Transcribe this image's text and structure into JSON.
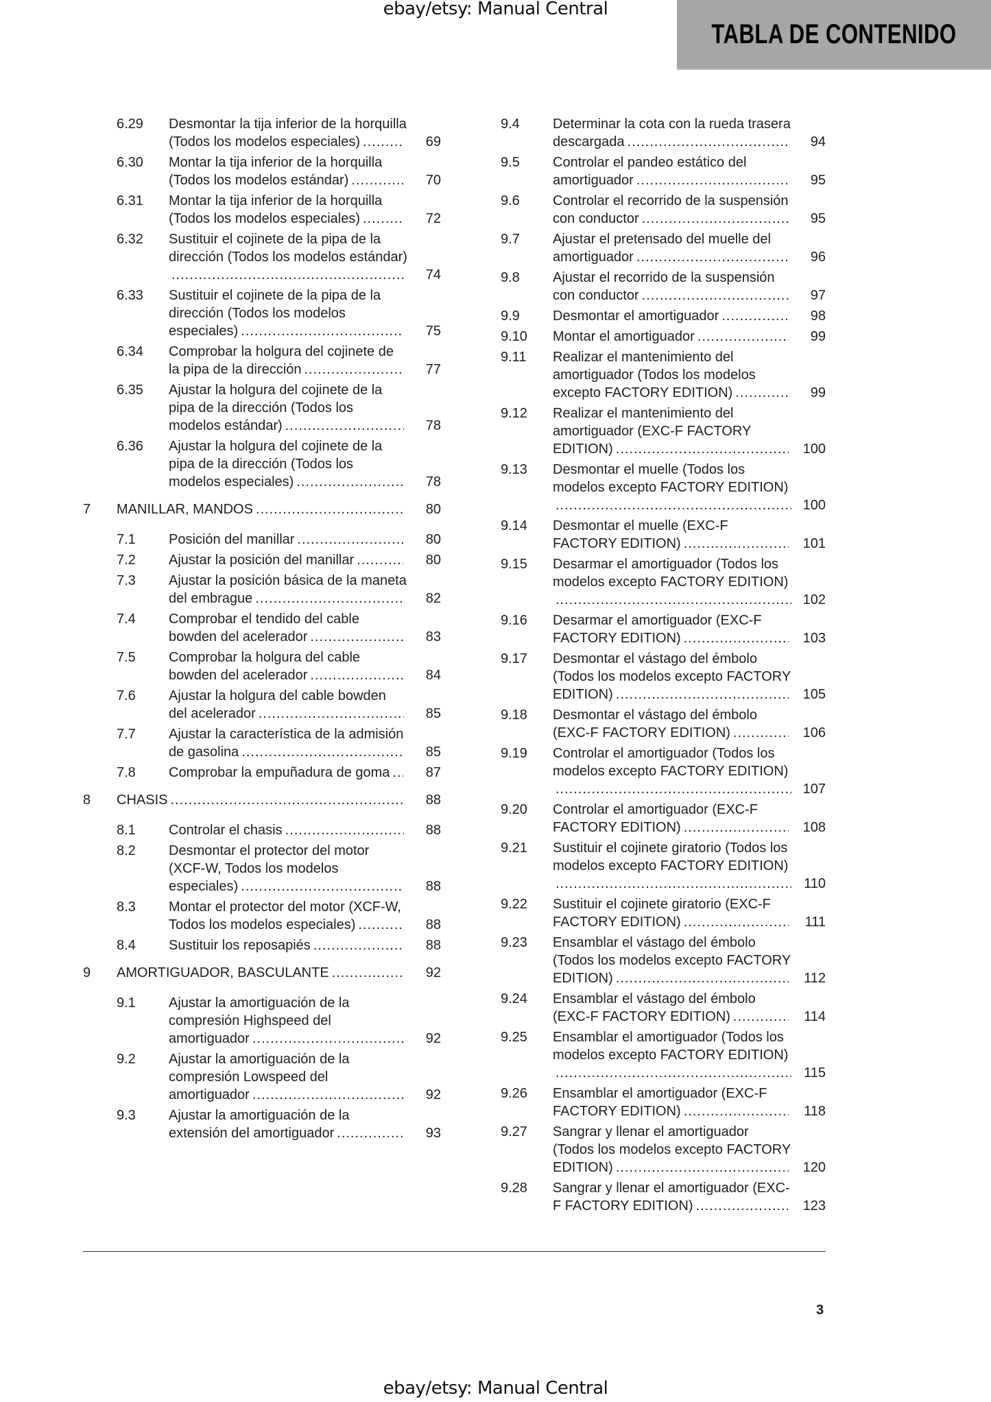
{
  "watermark": "ebay/etsy: Manual Central",
  "header": {
    "title": "TABLA DE CONTENIDO",
    "background": "#a6a6a6"
  },
  "page_number": "3",
  "columns": {
    "left": [
      {
        "num": "6.29",
        "title": "Desmontar la tija inferior de la horquilla (Todos los modelos especiales)",
        "page": "69"
      },
      {
        "num": "6.30",
        "title": "Montar la tija inferior de la horquilla (Todos los modelos estándar)",
        "page": "70"
      },
      {
        "num": "6.31",
        "title": "Montar la tija inferior de la horquilla (Todos los modelos especiales)",
        "page": "72"
      },
      {
        "num": "6.32",
        "title": "Sustituir el cojinete de la pipa de la dirección (Todos los modelos estándar)",
        "page": "74"
      },
      {
        "num": "6.33",
        "title": "Sustituir el cojinete de la pipa de la dirección (Todos los modelos especiales)",
        "page": "75"
      },
      {
        "num": "6.34",
        "title": "Comprobar la holgura del cojinete de la pipa de la dirección",
        "page": "77"
      },
      {
        "num": "6.35",
        "title": "Ajustar la holgura del cojinete de la pipa de la dirección (Todos los modelos estándar)",
        "page": "78"
      },
      {
        "num": "6.36",
        "title": "Ajustar la holgura del cojinete de la pipa de la dirección (Todos los modelos especiales)",
        "page": "78"
      },
      {
        "num": "7",
        "title": "MANILLAR, MANDOS",
        "page": "80",
        "chapter": true
      },
      {
        "num": "7.1",
        "title": "Posición del manillar",
        "page": "80"
      },
      {
        "num": "7.2",
        "title": "Ajustar la posición del manillar",
        "page": "80"
      },
      {
        "num": "7.3",
        "title": "Ajustar la posición básica de la maneta del embrague",
        "page": "82"
      },
      {
        "num": "7.4",
        "title": "Comprobar el tendido del cable bowden del acelerador",
        "page": "83"
      },
      {
        "num": "7.5",
        "title": "Comprobar la holgura del cable bowden del acelerador",
        "page": "84"
      },
      {
        "num": "7.6",
        "title": "Ajustar la holgura del cable bowden del acelerador",
        "page": "85"
      },
      {
        "num": "7.7",
        "title": "Ajustar la característica de la admisión de gasolina",
        "page": "85"
      },
      {
        "num": "7.8",
        "title": "Comprobar la empuñadura de goma",
        "page": "87"
      },
      {
        "num": "8",
        "title": "CHASIS",
        "page": "88",
        "chapter": true
      },
      {
        "num": "8.1",
        "title": "Controlar el chasis",
        "page": "88"
      },
      {
        "num": "8.2",
        "title": "Desmontar el protector del motor (XCF-W, Todos los modelos especiales)",
        "page": "88"
      },
      {
        "num": "8.3",
        "title": "Montar el protector del motor (XCF-W, Todos los modelos especiales)",
        "page": "88"
      },
      {
        "num": "8.4",
        "title": "Sustituir los reposapiés",
        "page": "88"
      },
      {
        "num": "9",
        "title": "AMORTIGUADOR, BASCULANTE",
        "page": "92",
        "chapter": true
      },
      {
        "num": "9.1",
        "title": "Ajustar la amortiguación de la compresión Highspeed del amortiguador",
        "page": "92"
      },
      {
        "num": "9.2",
        "title": "Ajustar la amortiguación de la compresión Lowspeed del amortiguador",
        "page": "92"
      },
      {
        "num": "9.3",
        "title": "Ajustar la amortiguación de la extensión del amortiguador",
        "page": "93"
      }
    ],
    "right": [
      {
        "num": "9.4",
        "title": "Determinar la cota con la rueda trasera descargada",
        "page": "94"
      },
      {
        "num": "9.5",
        "title": "Controlar el pandeo estático del amortiguador",
        "page": "95"
      },
      {
        "num": "9.6",
        "title": "Controlar el recorrido de la suspensión con conductor",
        "page": "95"
      },
      {
        "num": "9.7",
        "title": "Ajustar el pretensado del muelle del amortiguador",
        "page": "96"
      },
      {
        "num": "9.8",
        "title": "Ajustar el recorrido de la suspensión con conductor",
        "page": "97"
      },
      {
        "num": "9.9",
        "title": "Desmontar el amortiguador",
        "page": "98"
      },
      {
        "num": "9.10",
        "title": "Montar el amortiguador",
        "page": "99"
      },
      {
        "num": "9.11",
        "title": "Realizar el mantenimiento del amortiguador (Todos los modelos excepto FACTORY EDITION)",
        "page": "99"
      },
      {
        "num": "9.12",
        "title": "Realizar el mantenimiento del amortiguador (EXC-F FACTORY EDITION)",
        "page": "100"
      },
      {
        "num": "9.13",
        "title": "Desmontar el muelle (Todos los modelos excepto FACTORY EDITION)",
        "page": "100"
      },
      {
        "num": "9.14",
        "title": "Desmontar el muelle (EXC-F FACTORY EDITION)",
        "page": "101"
      },
      {
        "num": "9.15",
        "title": "Desarmar el amortiguador (Todos los modelos excepto FACTORY EDITION)",
        "page": "102"
      },
      {
        "num": "9.16",
        "title": "Desarmar el amortiguador (EXC-F FACTORY EDITION)",
        "page": "103"
      },
      {
        "num": "9.17",
        "title": "Desmontar el vástago del émbolo (Todos los modelos excepto FACTORY EDITION)",
        "page": "105"
      },
      {
        "num": "9.18",
        "title": "Desmontar el vástago del émbolo (EXC-F FACTORY EDITION)",
        "page": "106"
      },
      {
        "num": "9.19",
        "title": "Controlar el amortiguador (Todos los modelos excepto FACTORY EDITION)",
        "page": "107"
      },
      {
        "num": "9.20",
        "title": "Controlar el amortiguador (EXC-F FACTORY EDITION)",
        "page": "108"
      },
      {
        "num": "9.21",
        "title": "Sustituir el cojinete giratorio (Todos los modelos excepto FACTORY EDITION)",
        "page": "110"
      },
      {
        "num": "9.22",
        "title": "Sustituir el cojinete giratorio (EXC-F FACTORY EDITION)",
        "page": "111"
      },
      {
        "num": "9.23",
        "title": "Ensamblar el vástago del émbolo (Todos los modelos excepto FACTORY EDITION)",
        "page": "112"
      },
      {
        "num": "9.24",
        "title": "Ensamblar el vástago del émbolo (EXC-F FACTORY EDITION)",
        "page": "114"
      },
      {
        "num": "9.25",
        "title": "Ensamblar el amortiguador (Todos los modelos excepto FACTORY EDITION)",
        "page": "115"
      },
      {
        "num": "9.26",
        "title": "Ensamblar el amortiguador (EXC-F FACTORY EDITION)",
        "page": "118"
      },
      {
        "num": "9.27",
        "title": "Sangrar y llenar el amortiguador (Todos los modelos excepto FACTORY EDITION)",
        "page": "120"
      },
      {
        "num": "9.28",
        "title": "Sangrar y llenar el amortiguador (EXC-F FACTORY EDITION)",
        "page": "123"
      }
    ]
  }
}
